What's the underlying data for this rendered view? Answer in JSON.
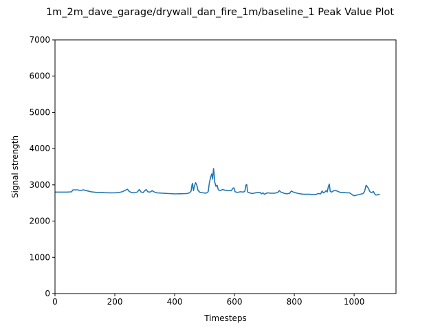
{
  "chart_data": {
    "type": "line",
    "title": "1m_2m_dave_garage/drywall_dan_fire_1m/baseline_1 Peak Value Plot",
    "xlabel": "Timesteps",
    "ylabel": "Signal strength",
    "xlim": [
      0,
      1140
    ],
    "ylim": [
      0,
      7000
    ],
    "xticks": [
      0,
      200,
      400,
      600,
      800,
      1000
    ],
    "yticks": [
      0,
      1000,
      2000,
      3000,
      4000,
      5000,
      6000,
      7000
    ],
    "grid": false,
    "legend": "none",
    "series": [
      {
        "color": "#1f77b4",
        "points": [
          [
            0,
            2800
          ],
          [
            20,
            2800
          ],
          [
            40,
            2800
          ],
          [
            55,
            2805
          ],
          [
            60,
            2860
          ],
          [
            75,
            2860
          ],
          [
            85,
            2845
          ],
          [
            95,
            2860
          ],
          [
            105,
            2840
          ],
          [
            120,
            2810
          ],
          [
            140,
            2790
          ],
          [
            160,
            2785
          ],
          [
            180,
            2780
          ],
          [
            200,
            2780
          ],
          [
            215,
            2790
          ],
          [
            225,
            2810
          ],
          [
            235,
            2850
          ],
          [
            242,
            2880
          ],
          [
            248,
            2820
          ],
          [
            255,
            2790
          ],
          [
            265,
            2780
          ],
          [
            275,
            2800
          ],
          [
            282,
            2870
          ],
          [
            288,
            2800
          ],
          [
            295,
            2790
          ],
          [
            300,
            2840
          ],
          [
            305,
            2870
          ],
          [
            310,
            2810
          ],
          [
            318,
            2800
          ],
          [
            325,
            2840
          ],
          [
            330,
            2810
          ],
          [
            340,
            2780
          ],
          [
            360,
            2770
          ],
          [
            380,
            2760
          ],
          [
            400,
            2750
          ],
          [
            420,
            2755
          ],
          [
            440,
            2760
          ],
          [
            450,
            2780
          ],
          [
            455,
            2830
          ],
          [
            458,
            3000
          ],
          [
            460,
            3040
          ],
          [
            463,
            2840
          ],
          [
            466,
            2960
          ],
          [
            470,
            3060
          ],
          [
            474,
            3000
          ],
          [
            478,
            2850
          ],
          [
            485,
            2790
          ],
          [
            495,
            2780
          ],
          [
            505,
            2770
          ],
          [
            512,
            2810
          ],
          [
            516,
            3050
          ],
          [
            520,
            3200
          ],
          [
            524,
            3300
          ],
          [
            527,
            3160
          ],
          [
            530,
            3450
          ],
          [
            532,
            3300
          ],
          [
            534,
            3080
          ],
          [
            538,
            2960
          ],
          [
            542,
            2990
          ],
          [
            546,
            2860
          ],
          [
            552,
            2840
          ],
          [
            560,
            2870
          ],
          [
            570,
            2850
          ],
          [
            580,
            2840
          ],
          [
            590,
            2840
          ],
          [
            594,
            2900
          ],
          [
            598,
            2920
          ],
          [
            602,
            2810
          ],
          [
            610,
            2790
          ],
          [
            620,
            2810
          ],
          [
            630,
            2800
          ],
          [
            635,
            2830
          ],
          [
            638,
            2990
          ],
          [
            641,
            3010
          ],
          [
            644,
            2800
          ],
          [
            650,
            2780
          ],
          [
            660,
            2760
          ],
          [
            670,
            2780
          ],
          [
            680,
            2790
          ],
          [
            686,
            2790
          ],
          [
            690,
            2750
          ],
          [
            695,
            2780
          ],
          [
            700,
            2740
          ],
          [
            705,
            2760
          ],
          [
            710,
            2780
          ],
          [
            720,
            2770
          ],
          [
            735,
            2770
          ],
          [
            745,
            2790
          ],
          [
            750,
            2840
          ],
          [
            755,
            2800
          ],
          [
            760,
            2790
          ],
          [
            765,
            2770
          ],
          [
            775,
            2750
          ],
          [
            785,
            2770
          ],
          [
            790,
            2830
          ],
          [
            797,
            2800
          ],
          [
            805,
            2780
          ],
          [
            815,
            2760
          ],
          [
            830,
            2740
          ],
          [
            850,
            2740
          ],
          [
            870,
            2730
          ],
          [
            880,
            2760
          ],
          [
            888,
            2750
          ],
          [
            893,
            2830
          ],
          [
            897,
            2780
          ],
          [
            902,
            2800
          ],
          [
            906,
            2840
          ],
          [
            910,
            2800
          ],
          [
            914,
            2960
          ],
          [
            917,
            3020
          ],
          [
            920,
            2820
          ],
          [
            925,
            2800
          ],
          [
            932,
            2840
          ],
          [
            940,
            2840
          ],
          [
            948,
            2810
          ],
          [
            955,
            2790
          ],
          [
            965,
            2790
          ],
          [
            975,
            2780
          ],
          [
            985,
            2780
          ],
          [
            995,
            2720
          ],
          [
            1000,
            2700
          ],
          [
            1010,
            2720
          ],
          [
            1020,
            2740
          ],
          [
            1030,
            2760
          ],
          [
            1035,
            2820
          ],
          [
            1040,
            2990
          ],
          [
            1044,
            2950
          ],
          [
            1048,
            2900
          ],
          [
            1052,
            2820
          ],
          [
            1056,
            2790
          ],
          [
            1060,
            2790
          ],
          [
            1064,
            2820
          ],
          [
            1068,
            2760
          ],
          [
            1072,
            2720
          ],
          [
            1078,
            2720
          ],
          [
            1082,
            2740
          ],
          [
            1086,
            2730
          ]
        ]
      }
    ]
  }
}
